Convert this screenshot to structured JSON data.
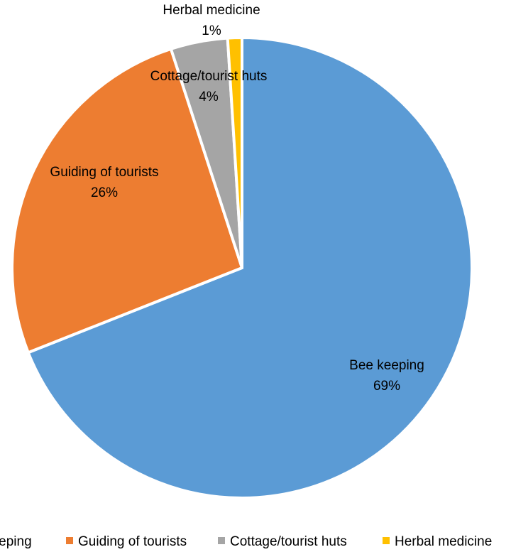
{
  "chart_data": {
    "type": "pie",
    "title": "",
    "categories": [
      "Bee keeping",
      "Guiding of tourists",
      "Cottage/tourist huts",
      "Herbal medicine"
    ],
    "values": [
      69,
      26,
      4,
      1
    ],
    "value_labels": [
      "69%",
      "26%",
      "4%",
      "1%"
    ],
    "colors": [
      "#5B9BD5",
      "#ED7D31",
      "#A5A5A5",
      "#FFC000"
    ],
    "start_angle_deg": 0,
    "direction": "clockwise",
    "slice_border_color": "#ffffff",
    "legend": {
      "position": "bottom",
      "entries": [
        "Bee keeping",
        "Guiding of tourists",
        "Cottage/tourist huts",
        "Herbal medicine"
      ]
    }
  }
}
